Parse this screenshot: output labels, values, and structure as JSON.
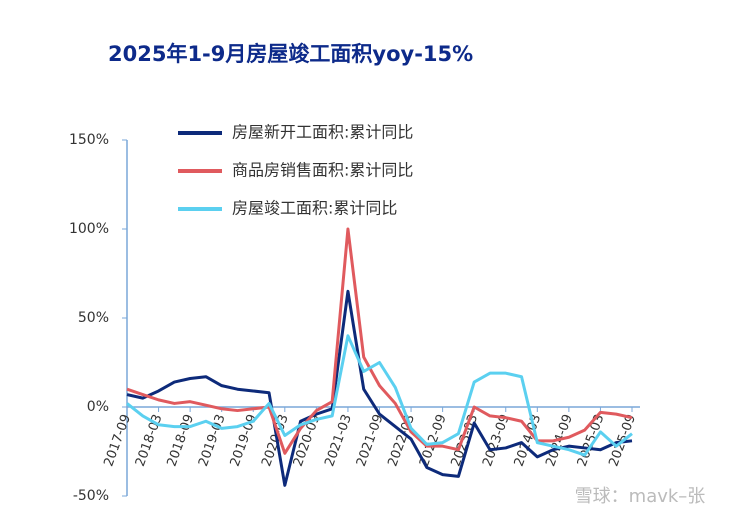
{
  "chart_data": {
    "type": "line",
    "title": "2025年1-9月房屋竣工面积yoy-15%",
    "watermark": "雪球：mavk–张",
    "categories": [
      "2017-09",
      null,
      "2018-03",
      null,
      "2018-09",
      null,
      "2019-03",
      null,
      "2019-09",
      null,
      "2020-03",
      null,
      "2020-09",
      null,
      "2021-03",
      null,
      "2021-09",
      null,
      "2022-03",
      null,
      "2022-09",
      null,
      "2023-03",
      null,
      "2023-09",
      null,
      "2024-03",
      null,
      "2024-09",
      null,
      "2025-03",
      null,
      "2025-09"
    ],
    "series": [
      {
        "name": "房屋新开工面积:累计同比",
        "color": "#0d2a7a",
        "values": [
          7,
          5,
          9,
          14,
          16,
          17,
          12,
          10,
          9,
          8,
          -44,
          -8,
          -4,
          -1,
          65,
          10,
          -4,
          -11,
          -18,
          -34,
          -38,
          -39,
          -9,
          -24,
          -23,
          -20,
          -28,
          -24,
          -22,
          -23,
          -24,
          -20,
          -19
        ]
      },
      {
        "name": "商品房销售面积:累计同比",
        "color": "#e05a5e",
        "values": [
          10,
          7,
          4,
          2,
          3,
          1,
          -1,
          -2,
          -1,
          0,
          -26,
          -12,
          -2,
          3,
          100,
          28,
          12,
          2,
          -14,
          -22,
          -22,
          -24,
          0,
          -5,
          -6,
          -8,
          -19,
          -19,
          -17,
          -13,
          -3,
          -4,
          -6
        ]
      },
      {
        "name": "房屋竣工面积:累计同比",
        "color": "#5bd0f0",
        "values": [
          2,
          -5,
          -10,
          -11,
          -11,
          -8,
          -12,
          -11,
          -8,
          2,
          -16,
          -10,
          -7,
          -5,
          40,
          20,
          25,
          11,
          -12,
          -21,
          -20,
          -15,
          14,
          19,
          19,
          17,
          -20,
          -22,
          -24,
          -27,
          -14,
          -22,
          -15
        ]
      }
    ],
    "ylim": [
      -50,
      150
    ],
    "yticks": [
      {
        "value": -50,
        "label": "-50%"
      },
      {
        "value": 0,
        "label": "0%"
      },
      {
        "value": 50,
        "label": "50%"
      },
      {
        "value": 100,
        "label": "100%"
      },
      {
        "value": 150,
        "label": "150%"
      }
    ]
  }
}
